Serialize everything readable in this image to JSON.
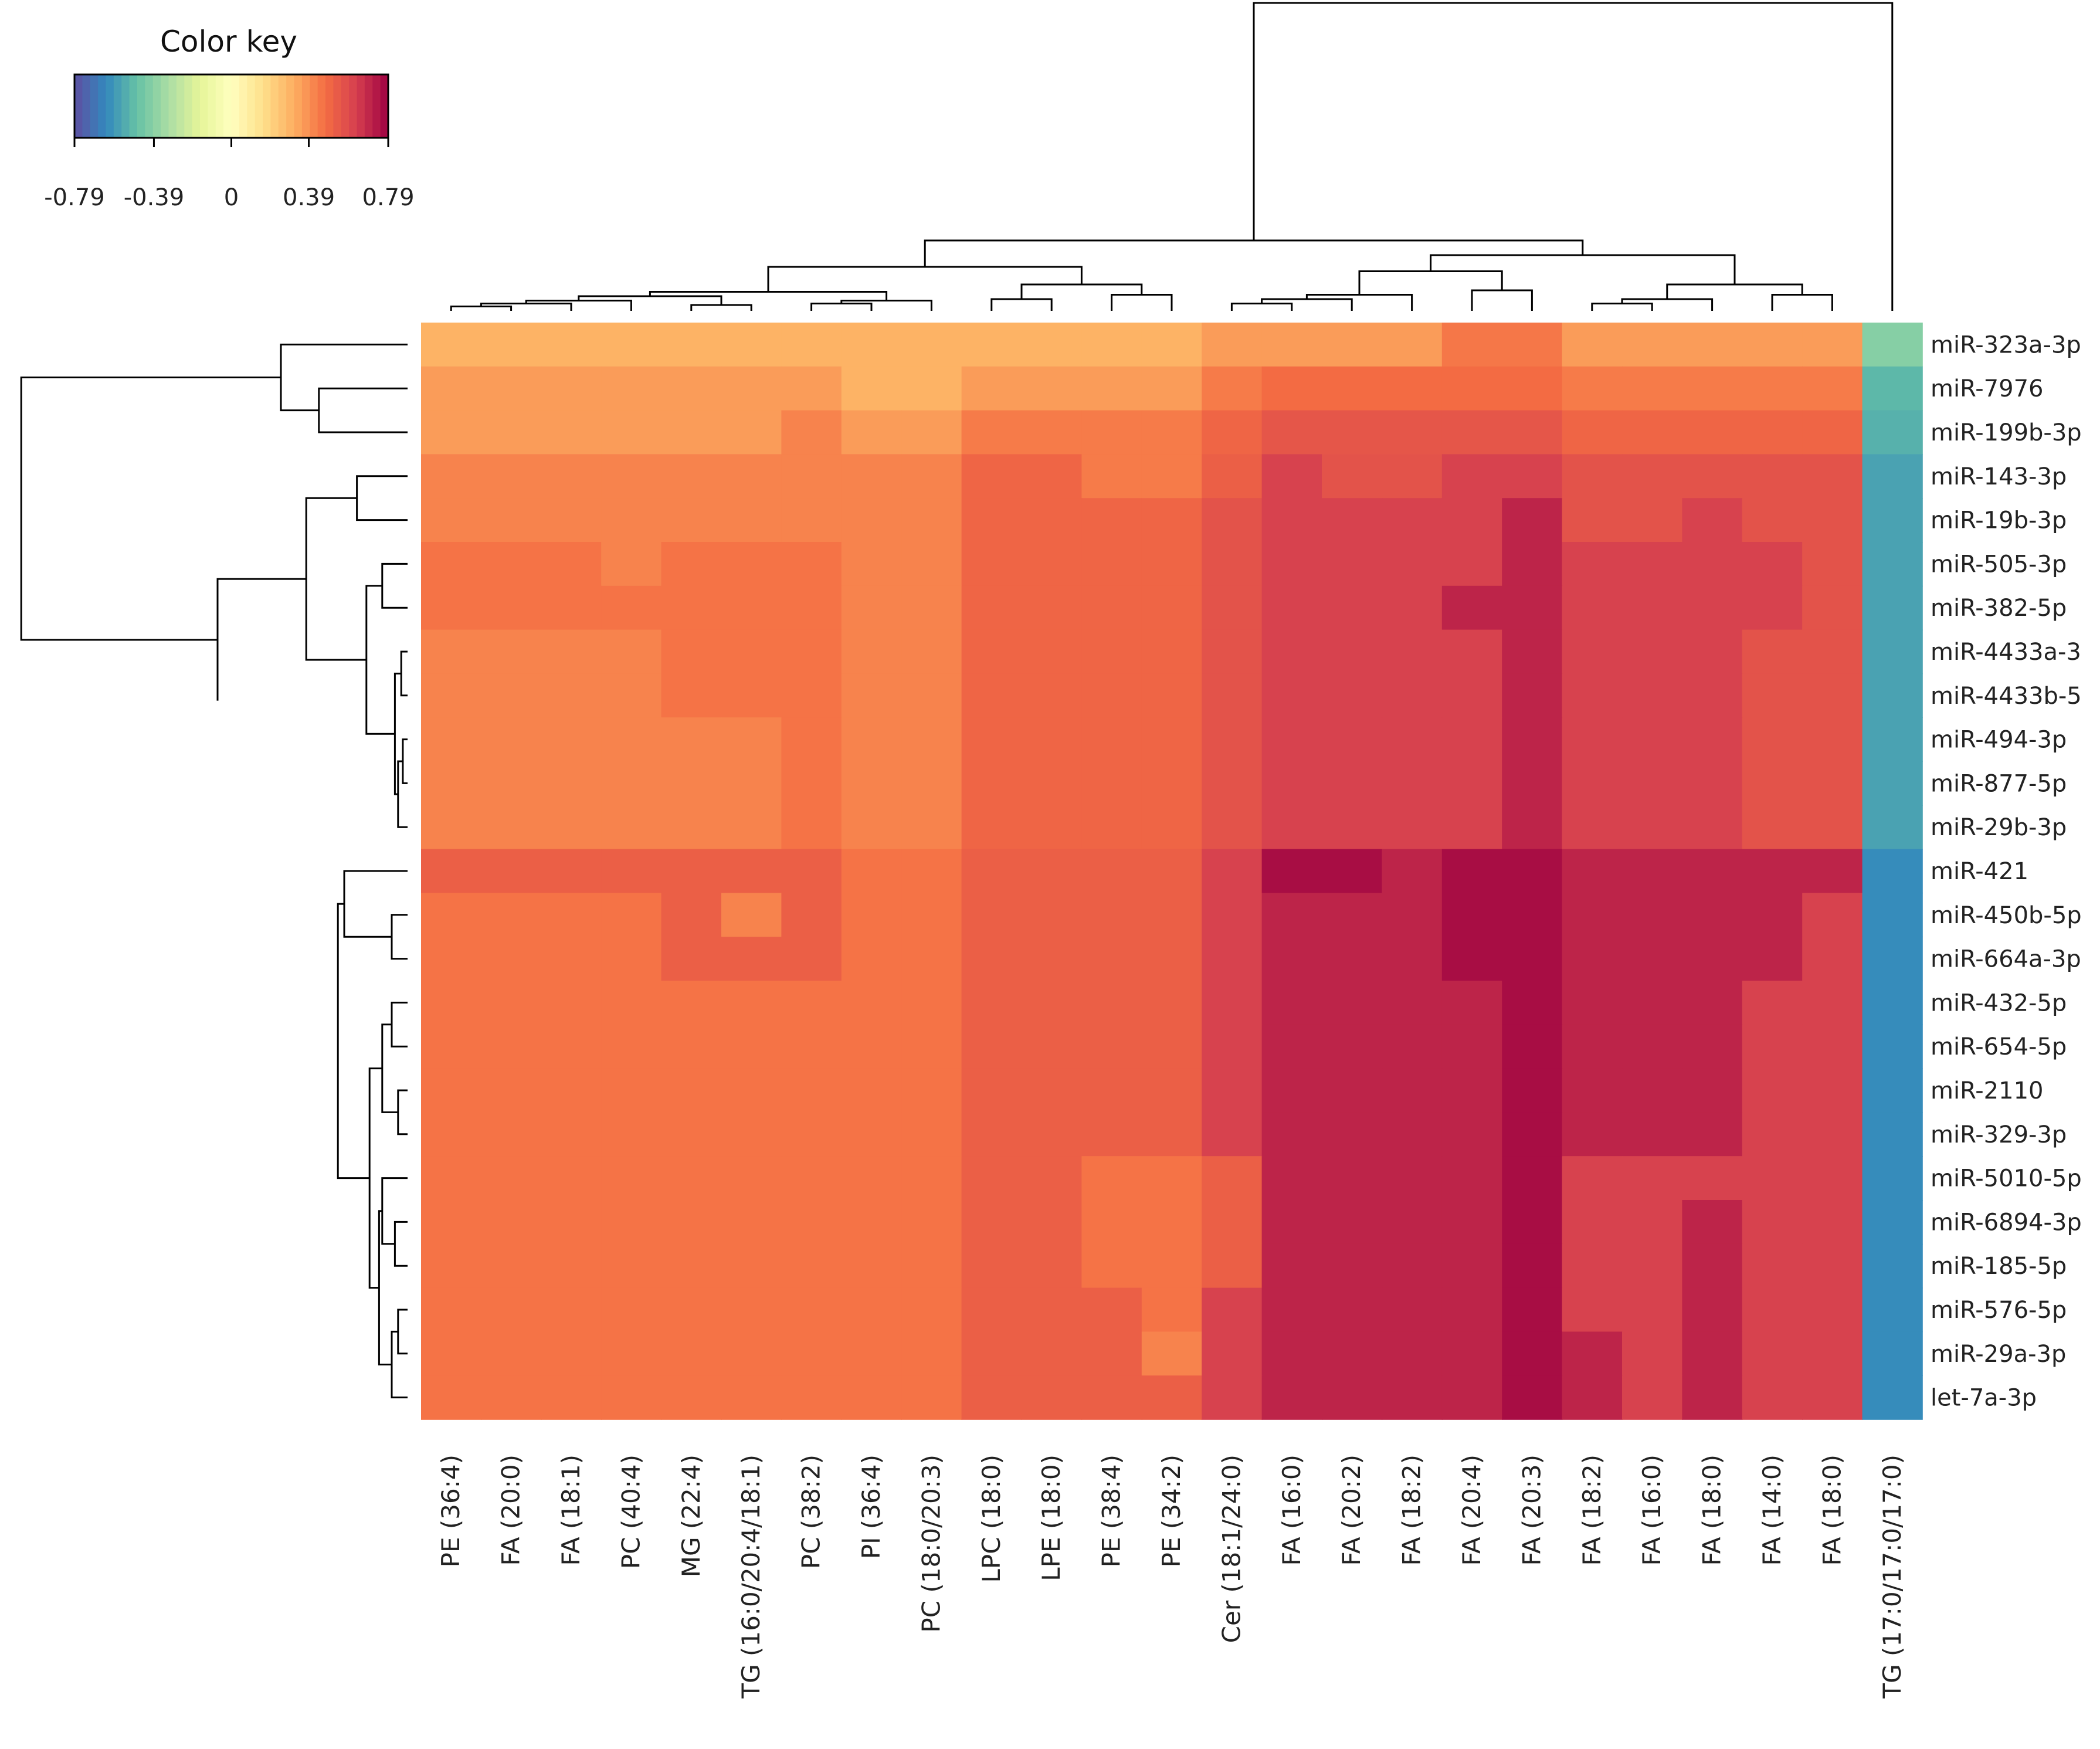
{
  "chart_data": {
    "type": "heatmap",
    "title": "",
    "color_key": {
      "title": "Color key",
      "ticks": [
        "-0.79",
        "-0.39",
        "0",
        "0.39",
        "0.79"
      ],
      "range": [
        -0.79,
        0.79
      ],
      "colors": [
        "#5e4fa2",
        "#3288bd",
        "#66c2a5",
        "#abdda4",
        "#e6f598",
        "#ffffbf",
        "#fee08b",
        "#fdae61",
        "#f46d43",
        "#d53e4f",
        "#9e0142"
      ]
    },
    "rows": [
      "miR-323a-3p",
      "miR-7976",
      "miR-199b-3p",
      "miR-143-3p",
      "miR-19b-3p",
      "miR-505-3p",
      "miR-382-5p",
      "miR-4433a-3",
      "miR-4433b-5",
      "miR-494-3p",
      "miR-877-5p",
      "miR-29b-3p",
      "miR-421",
      "miR-450b-5p",
      "miR-664a-3p",
      "miR-432-5p",
      "miR-654-5p",
      "miR-2110",
      "miR-329-3p",
      "miR-5010-5p",
      "miR-6894-3p",
      "miR-185-5p",
      "miR-576-5p",
      "miR-29a-3p",
      "let-7a-3p"
    ],
    "columns": [
      "PE (36:4)",
      "FA (20:0)",
      "FA (18:1)",
      "PC (40:4)",
      "MG (22:4)",
      "TG (16:0/20:4/18:1)",
      "PC (38:2)",
      "PI (36:4)",
      "PC (18:0/20:3)",
      "LPC (18:0)",
      "LPE (18:0)",
      "PE (38:4)",
      "PE (34:2)",
      "Cer (18:1/24:0)",
      "FA (16:0)",
      "FA (20:2)",
      "FA (18:2)",
      "FA (20:4)",
      "FA (20:3)",
      "FA (18:2)",
      "FA (16:0)",
      "FA (18:0)",
      "FA (14:0)",
      "FA (18:0)",
      "TG (17:0/17:0/17:0)"
    ],
    "values": [
      [
        0.3,
        0.3,
        0.3,
        0.3,
        0.3,
        0.3,
        0.3,
        0.3,
        0.3,
        0.3,
        0.3,
        0.3,
        0.3,
        0.36,
        0.36,
        0.36,
        0.36,
        0.45,
        0.45,
        0.36,
        0.36,
        0.36,
        0.36,
        0.36,
        -0.4
      ],
      [
        0.36,
        0.36,
        0.36,
        0.36,
        0.36,
        0.36,
        0.36,
        0.3,
        0.3,
        0.36,
        0.36,
        0.36,
        0.36,
        0.44,
        0.48,
        0.48,
        0.48,
        0.48,
        0.48,
        0.44,
        0.44,
        0.44,
        0.44,
        0.44,
        -0.5
      ],
      [
        0.36,
        0.36,
        0.36,
        0.36,
        0.36,
        0.36,
        0.42,
        0.36,
        0.36,
        0.44,
        0.44,
        0.44,
        0.44,
        0.5,
        0.55,
        0.55,
        0.55,
        0.55,
        0.55,
        0.5,
        0.5,
        0.5,
        0.5,
        0.5,
        -0.52
      ],
      [
        0.42,
        0.42,
        0.42,
        0.42,
        0.42,
        0.42,
        0.42,
        0.42,
        0.42,
        0.5,
        0.5,
        0.44,
        0.44,
        0.52,
        0.62,
        0.56,
        0.56,
        0.62,
        0.62,
        0.56,
        0.56,
        0.56,
        0.56,
        0.56,
        -0.56
      ],
      [
        0.42,
        0.42,
        0.42,
        0.42,
        0.42,
        0.42,
        0.42,
        0.42,
        0.42,
        0.5,
        0.5,
        0.5,
        0.5,
        0.56,
        0.62,
        0.62,
        0.62,
        0.62,
        0.7,
        0.56,
        0.56,
        0.62,
        0.56,
        0.56,
        -0.56
      ],
      [
        0.46,
        0.46,
        0.46,
        0.42,
        0.46,
        0.46,
        0.46,
        0.42,
        0.42,
        0.5,
        0.5,
        0.5,
        0.5,
        0.56,
        0.62,
        0.62,
        0.62,
        0.62,
        0.7,
        0.62,
        0.62,
        0.62,
        0.62,
        0.56,
        -0.56
      ],
      [
        0.46,
        0.46,
        0.46,
        0.46,
        0.46,
        0.46,
        0.46,
        0.42,
        0.42,
        0.5,
        0.5,
        0.5,
        0.5,
        0.56,
        0.62,
        0.62,
        0.62,
        0.7,
        0.7,
        0.62,
        0.62,
        0.62,
        0.62,
        0.56,
        -0.56
      ],
      [
        0.42,
        0.42,
        0.42,
        0.42,
        0.46,
        0.46,
        0.46,
        0.42,
        0.42,
        0.5,
        0.5,
        0.5,
        0.5,
        0.56,
        0.62,
        0.62,
        0.62,
        0.62,
        0.7,
        0.62,
        0.62,
        0.62,
        0.56,
        0.56,
        -0.56
      ],
      [
        0.42,
        0.42,
        0.42,
        0.42,
        0.46,
        0.46,
        0.46,
        0.42,
        0.42,
        0.5,
        0.5,
        0.5,
        0.5,
        0.56,
        0.62,
        0.62,
        0.62,
        0.62,
        0.7,
        0.62,
        0.62,
        0.62,
        0.56,
        0.56,
        -0.56
      ],
      [
        0.42,
        0.42,
        0.42,
        0.42,
        0.42,
        0.42,
        0.46,
        0.42,
        0.42,
        0.5,
        0.5,
        0.5,
        0.5,
        0.56,
        0.62,
        0.62,
        0.62,
        0.62,
        0.7,
        0.62,
        0.62,
        0.62,
        0.56,
        0.56,
        -0.56
      ],
      [
        0.42,
        0.42,
        0.42,
        0.42,
        0.42,
        0.42,
        0.46,
        0.42,
        0.42,
        0.5,
        0.5,
        0.5,
        0.5,
        0.56,
        0.62,
        0.62,
        0.62,
        0.62,
        0.7,
        0.62,
        0.62,
        0.62,
        0.56,
        0.56,
        -0.56
      ],
      [
        0.42,
        0.42,
        0.42,
        0.42,
        0.42,
        0.42,
        0.46,
        0.42,
        0.42,
        0.5,
        0.5,
        0.5,
        0.5,
        0.56,
        0.62,
        0.62,
        0.62,
        0.62,
        0.7,
        0.62,
        0.62,
        0.62,
        0.56,
        0.56,
        -0.56
      ],
      [
        0.52,
        0.52,
        0.52,
        0.52,
        0.52,
        0.52,
        0.52,
        0.46,
        0.46,
        0.52,
        0.52,
        0.52,
        0.52,
        0.62,
        0.76,
        0.76,
        0.7,
        0.76,
        0.76,
        0.7,
        0.7,
        0.7,
        0.7,
        0.7,
        -0.62
      ],
      [
        0.46,
        0.46,
        0.46,
        0.46,
        0.52,
        0.42,
        0.52,
        0.46,
        0.46,
        0.52,
        0.52,
        0.52,
        0.52,
        0.62,
        0.7,
        0.7,
        0.7,
        0.76,
        0.76,
        0.7,
        0.7,
        0.7,
        0.7,
        0.62,
        -0.62
      ],
      [
        0.46,
        0.46,
        0.46,
        0.46,
        0.52,
        0.52,
        0.52,
        0.46,
        0.46,
        0.52,
        0.52,
        0.52,
        0.52,
        0.62,
        0.7,
        0.7,
        0.7,
        0.76,
        0.76,
        0.7,
        0.7,
        0.7,
        0.7,
        0.62,
        -0.62
      ],
      [
        0.46,
        0.46,
        0.46,
        0.46,
        0.46,
        0.46,
        0.46,
        0.46,
        0.46,
        0.52,
        0.52,
        0.52,
        0.52,
        0.62,
        0.7,
        0.7,
        0.7,
        0.7,
        0.76,
        0.7,
        0.7,
        0.7,
        0.62,
        0.62,
        -0.62
      ],
      [
        0.46,
        0.46,
        0.46,
        0.46,
        0.46,
        0.46,
        0.46,
        0.46,
        0.46,
        0.52,
        0.52,
        0.52,
        0.52,
        0.62,
        0.7,
        0.7,
        0.7,
        0.7,
        0.76,
        0.7,
        0.7,
        0.7,
        0.62,
        0.62,
        -0.62
      ],
      [
        0.46,
        0.46,
        0.46,
        0.46,
        0.46,
        0.46,
        0.46,
        0.46,
        0.46,
        0.52,
        0.52,
        0.52,
        0.52,
        0.62,
        0.7,
        0.7,
        0.7,
        0.7,
        0.76,
        0.7,
        0.7,
        0.7,
        0.62,
        0.62,
        -0.62
      ],
      [
        0.46,
        0.46,
        0.46,
        0.46,
        0.46,
        0.46,
        0.46,
        0.46,
        0.46,
        0.52,
        0.52,
        0.52,
        0.52,
        0.62,
        0.7,
        0.7,
        0.7,
        0.7,
        0.76,
        0.7,
        0.7,
        0.7,
        0.62,
        0.62,
        -0.62
      ],
      [
        0.46,
        0.46,
        0.46,
        0.46,
        0.46,
        0.46,
        0.46,
        0.46,
        0.46,
        0.52,
        0.52,
        0.46,
        0.46,
        0.52,
        0.7,
        0.7,
        0.7,
        0.7,
        0.76,
        0.62,
        0.62,
        0.62,
        0.62,
        0.62,
        -0.62
      ],
      [
        0.46,
        0.46,
        0.46,
        0.46,
        0.46,
        0.46,
        0.46,
        0.46,
        0.46,
        0.52,
        0.52,
        0.46,
        0.46,
        0.52,
        0.7,
        0.7,
        0.7,
        0.7,
        0.76,
        0.62,
        0.62,
        0.7,
        0.62,
        0.62,
        -0.62
      ],
      [
        0.46,
        0.46,
        0.46,
        0.46,
        0.46,
        0.46,
        0.46,
        0.46,
        0.46,
        0.52,
        0.52,
        0.46,
        0.46,
        0.52,
        0.7,
        0.7,
        0.7,
        0.7,
        0.76,
        0.62,
        0.62,
        0.7,
        0.62,
        0.62,
        -0.62
      ],
      [
        0.46,
        0.46,
        0.46,
        0.46,
        0.46,
        0.46,
        0.46,
        0.46,
        0.46,
        0.52,
        0.52,
        0.52,
        0.46,
        0.62,
        0.7,
        0.7,
        0.7,
        0.7,
        0.76,
        0.62,
        0.62,
        0.7,
        0.62,
        0.62,
        -0.62
      ],
      [
        0.46,
        0.46,
        0.46,
        0.46,
        0.46,
        0.46,
        0.46,
        0.46,
        0.46,
        0.52,
        0.52,
        0.52,
        0.42,
        0.62,
        0.7,
        0.7,
        0.7,
        0.7,
        0.76,
        0.7,
        0.62,
        0.7,
        0.62,
        0.62,
        -0.62
      ],
      [
        0.46,
        0.46,
        0.46,
        0.46,
        0.46,
        0.46,
        0.46,
        0.46,
        0.46,
        0.52,
        0.52,
        0.52,
        0.52,
        0.62,
        0.7,
        0.7,
        0.7,
        0.7,
        0.76,
        0.7,
        0.62,
        0.7,
        0.62,
        0.62,
        -0.62
      ]
    ]
  }
}
